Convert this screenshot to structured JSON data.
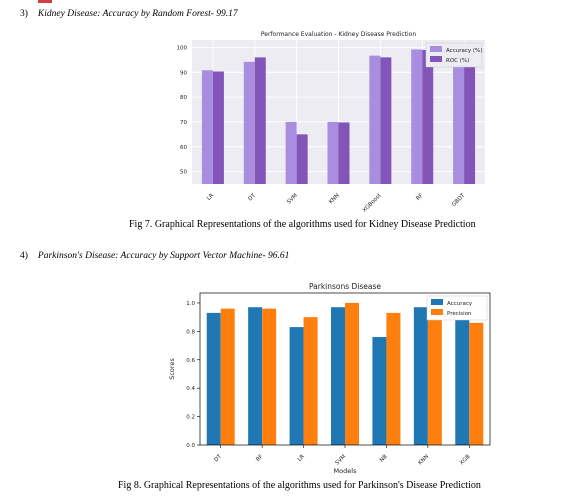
{
  "section3": {
    "number": "3)",
    "text": "Kidney Disease: Accuracy by Random Forest- 99.17"
  },
  "fig7_caption": "Fig 7. Graphical Representations of the algorithms used for Kidney Disease Prediction",
  "section4": {
    "number": "4)",
    "text": "Parkinson's Disease: Accuracy by Support Vector Machine- 96.61"
  },
  "fig8_caption": "Fig 8. Graphical Representations of the algorithms used for Parkinson's Disease Prediction",
  "chart_data": [
    {
      "type": "bar",
      "title": "Performance Evaluation - Kidney Disease Prediction",
      "xlabel": "",
      "ylabel": "",
      "categories": [
        "LR",
        "DT",
        "SVM",
        "KNN",
        "XGBoost",
        "RF",
        "GBDT"
      ],
      "series": [
        {
          "name": "Accuracy (%)",
          "color": "#a98de0",
          "values": [
            90.8,
            94.2,
            70,
            70,
            96.7,
            99.17,
            97.5
          ]
        },
        {
          "name": "ROC (%)",
          "color": "#8455b8",
          "values": [
            90.3,
            96,
            65,
            69.8,
            96,
            99,
            96.2
          ]
        }
      ],
      "ylim": [
        45,
        103
      ],
      "yticks": [
        50,
        60,
        70,
        80,
        90,
        100
      ],
      "grid": true,
      "legend": "top-right",
      "background": "#ececf2"
    },
    {
      "type": "bar",
      "title": "Parkinsons Disease",
      "xlabel": "Models",
      "ylabel": "Scores",
      "categories": [
        "DT",
        "RF",
        "LR",
        "SVM",
        "NB",
        "KNN",
        "XGB"
      ],
      "series": [
        {
          "name": "Accuracy",
          "color": "#1f77b4",
          "values": [
            0.93,
            0.97,
            0.83,
            0.97,
            0.76,
            0.97,
            0.93
          ]
        },
        {
          "name": "Precision",
          "color": "#ff7f0e",
          "values": [
            0.96,
            0.96,
            0.9,
            1.0,
            0.93,
            1.0,
            0.86
          ]
        }
      ],
      "ylim": [
        0,
        1.07
      ],
      "yticks": [
        "0.0",
        "0.2",
        "0.4",
        "0.6",
        "0.8",
        "1.0"
      ],
      "grid": false,
      "legend": "top-right"
    }
  ]
}
